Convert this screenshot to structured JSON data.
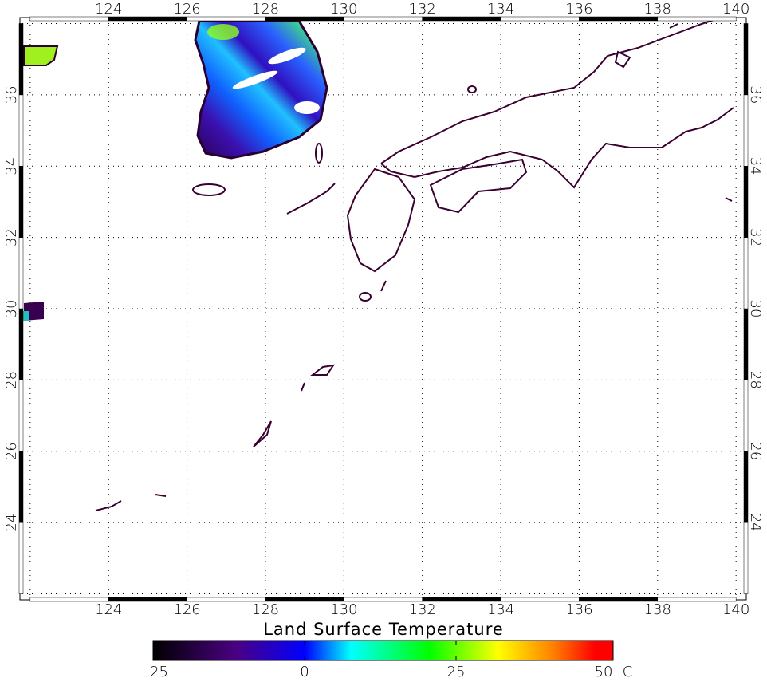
{
  "map": {
    "lon_ticks": [
      "124",
      "126",
      "128",
      "130",
      "132",
      "134",
      "136",
      "138",
      "140"
    ],
    "lat_ticks": [
      "24",
      "26",
      "28",
      "30",
      "32",
      "34",
      "36"
    ],
    "lon_range": [
      121.8,
      140.2
    ],
    "lat_range": [
      21.9,
      38.1
    ],
    "grid": true,
    "coastline_color": "#3a0030"
  },
  "colorbar": {
    "title": "Land Surface Temperature",
    "labels": [
      "−25",
      "0",
      "25",
      "50"
    ],
    "unit": "C",
    "range": [
      -25,
      50
    ],
    "colormap": [
      "#000000",
      "#4b0082",
      "#0000ff",
      "#00ffff",
      "#00ff00",
      "#ffff00",
      "#ff8000",
      "#ff0000"
    ]
  }
}
